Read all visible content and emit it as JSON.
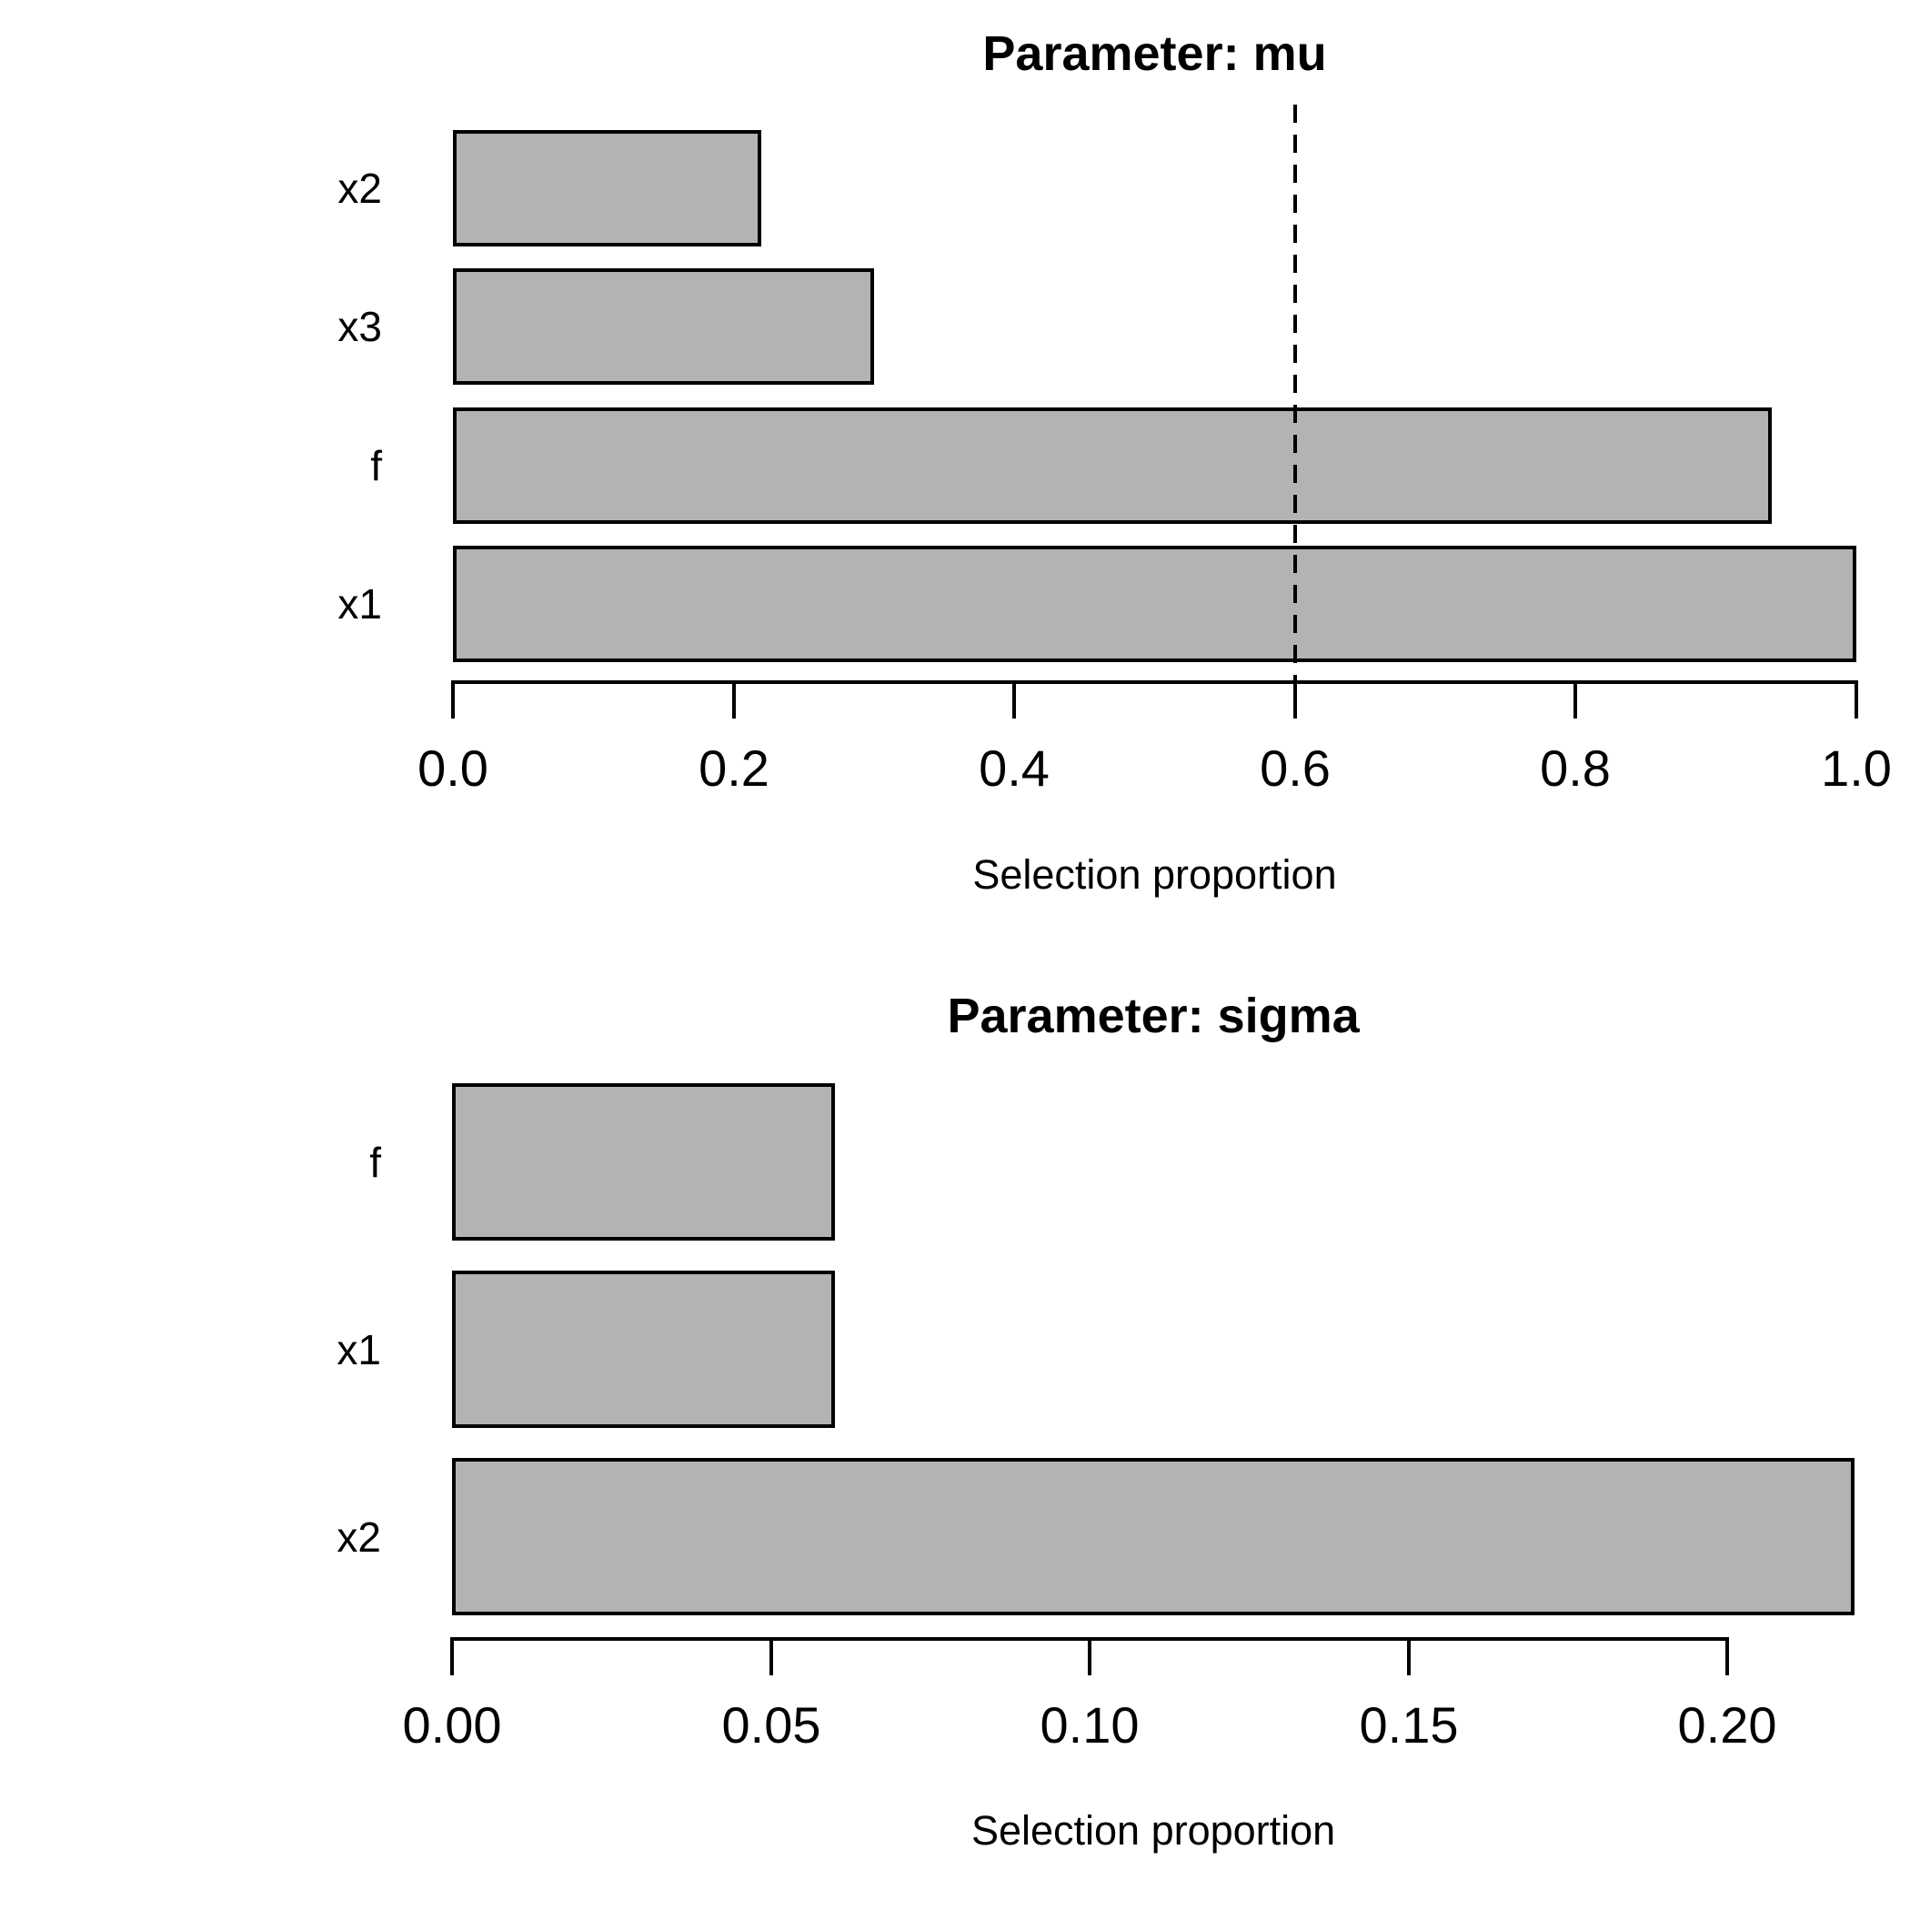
{
  "page": {
    "background": "#ffffff",
    "text_color": "#000000"
  },
  "chart_data": [
    {
      "type": "bar",
      "orientation": "horizontal",
      "title": "Parameter: mu",
      "categories": [
        "x2",
        "x3",
        "f",
        "x1"
      ],
      "values": [
        0.22,
        0.3,
        0.94,
        1.0
      ],
      "xlabel": "Selection proportion",
      "xtick_labels": [
        "0.0",
        "0.2",
        "0.4",
        "0.6",
        "0.8",
        "1.0"
      ],
      "xtick_values": [
        0.0,
        0.2,
        0.4,
        0.6,
        0.8,
        1.0
      ],
      "xlim": [
        0,
        1.0
      ],
      "reference_line": {
        "value": 0.6,
        "style": "dashed",
        "color": "#000000"
      },
      "bar_fill": "#b3b3b3",
      "bar_border": "#000000",
      "grid": false,
      "legend": null
    },
    {
      "type": "bar",
      "orientation": "horizontal",
      "title": "Parameter: sigma",
      "categories": [
        "f",
        "x1",
        "x2"
      ],
      "values": [
        0.06,
        0.06,
        0.22
      ],
      "xlabel": "Selection proportion",
      "xtick_labels": [
        "0.00",
        "0.05",
        "0.10",
        "0.15",
        "0.20"
      ],
      "xtick_values": [
        0.0,
        0.05,
        0.1,
        0.15,
        0.2
      ],
      "xlim": [
        0,
        0.22
      ],
      "reference_line": null,
      "bar_fill": "#b3b3b3",
      "bar_border": "#000000",
      "grid": false,
      "legend": null
    }
  ]
}
